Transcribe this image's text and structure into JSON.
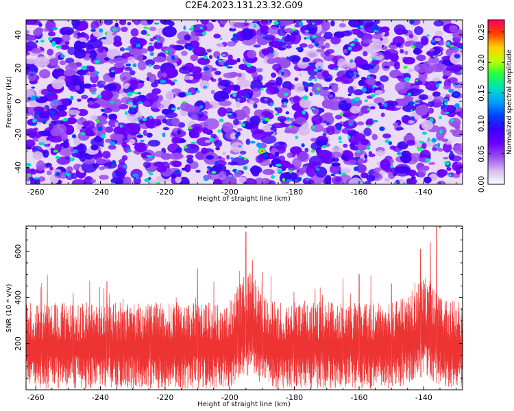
{
  "title": "C2E4.2023.131.23.32.G09",
  "chart_data": [
    {
      "type": "heatmap",
      "xlabel": "Height of straight line (km)",
      "ylabel": "Frequency (Hz)",
      "xlim": [
        -263,
        -128
      ],
      "ylim": [
        -50,
        49
      ],
      "x_ticks": [
        -260,
        -240,
        -220,
        -200,
        -180,
        -160,
        -140
      ],
      "y_ticks": [
        -40,
        -20,
        0,
        20,
        40
      ],
      "colorbar": {
        "label": "Normalized spectral amplitude",
        "range": [
          0,
          0.27
        ],
        "ticks": [
          "0.00",
          "0.05",
          "0.10",
          "0.15",
          "0.20",
          "0.25"
        ]
      },
      "peaks": [
        {
          "x": -190,
          "y": -30,
          "value": 0.26
        },
        {
          "x": -189,
          "y": -33,
          "value": 0.12
        },
        {
          "x": -194,
          "y": -15,
          "value": 0.11
        },
        {
          "x": -130,
          "y": 4,
          "value": 0.12
        },
        {
          "x": -142,
          "y": 30,
          "value": 0.11
        },
        {
          "x": -198,
          "y": 8,
          "value": 0.1
        }
      ],
      "colors": [
        "#ffffff",
        "#d8b8ee",
        "#9a4ded",
        "#6a00ff",
        "#3a00f8",
        "#0040ff",
        "#00a0ff",
        "#00e0c0",
        "#20ff40",
        "#c0ff00",
        "#ffd000",
        "#ff4000",
        "#ff0060"
      ]
    },
    {
      "type": "line",
      "xlabel": "Height of straight line (km)",
      "ylabel": "SNR (10 * v/v)",
      "xlim": [
        -263,
        -128
      ],
      "ylim": [
        0,
        710
      ],
      "x_ticks": [
        -260,
        -240,
        -220,
        -200,
        -180,
        -160,
        -140
      ],
      "y_ticks": [
        200,
        400,
        600
      ],
      "color": "#ee3333",
      "baseline_mean": 170,
      "peaks": [
        {
          "x": -195,
          "y": 685
        },
        {
          "x": -136,
          "y": 710
        },
        {
          "x": -193,
          "y": 560
        },
        {
          "x": -141,
          "y": 610
        },
        {
          "x": -138,
          "y": 640
        },
        {
          "x": -190,
          "y": 510
        },
        {
          "x": -210,
          "y": 525
        },
        {
          "x": -160,
          "y": 500
        },
        {
          "x": -238,
          "y": 470
        },
        {
          "x": -150,
          "y": 460
        }
      ]
    }
  ]
}
